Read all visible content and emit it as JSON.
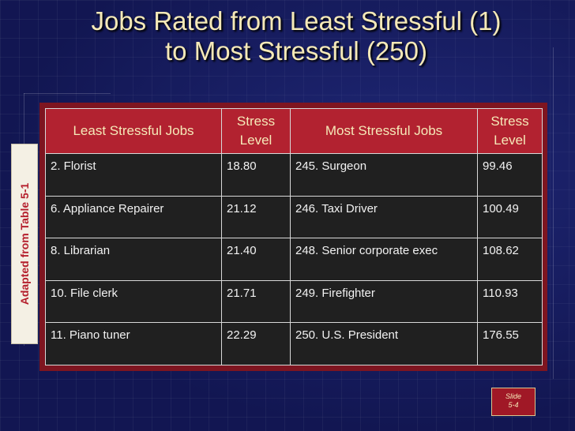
{
  "slide": {
    "title_line1": "Jobs Rated from Least Stressful (1)",
    "title_line2": "to Most Stressful (250)",
    "side_label": "Adapted from Table 5-1",
    "badge_line1": "Slide",
    "badge_line2": "5-4"
  },
  "table": {
    "headers": {
      "least": "Least Stressful Jobs",
      "stress_level_1": "Stress Level",
      "most": "Most Stressful Jobs",
      "stress_level_2": "Stress Level"
    },
    "rows": [
      {
        "least_job": "2. Florist",
        "least_level": "18.80",
        "most_job": "245. Surgeon",
        "most_level": "99.46"
      },
      {
        "least_job": "6. Appliance Repairer",
        "least_level": "21.12",
        "most_job": "246. Taxi Driver",
        "most_level": "100.49"
      },
      {
        "least_job": "8. Librarian",
        "least_level": "21.40",
        "most_job": "248. Senior corporate exec",
        "most_level": "108.62"
      },
      {
        "least_job": "10. File clerk",
        "least_level": "21.71",
        "most_job": "249. Firefighter",
        "most_level": "110.93"
      },
      {
        "least_job": "11. Piano tuner",
        "least_level": "22.29",
        "most_job": "250. U.S. President",
        "most_level": "176.55"
      }
    ]
  },
  "colors": {
    "background": "#14195a",
    "title_text": "#f5e9b8",
    "table_frame": "#7e1520",
    "header_fill": "#b22230",
    "cell_fill": "#202020",
    "side_label_text": "#b5202d"
  }
}
